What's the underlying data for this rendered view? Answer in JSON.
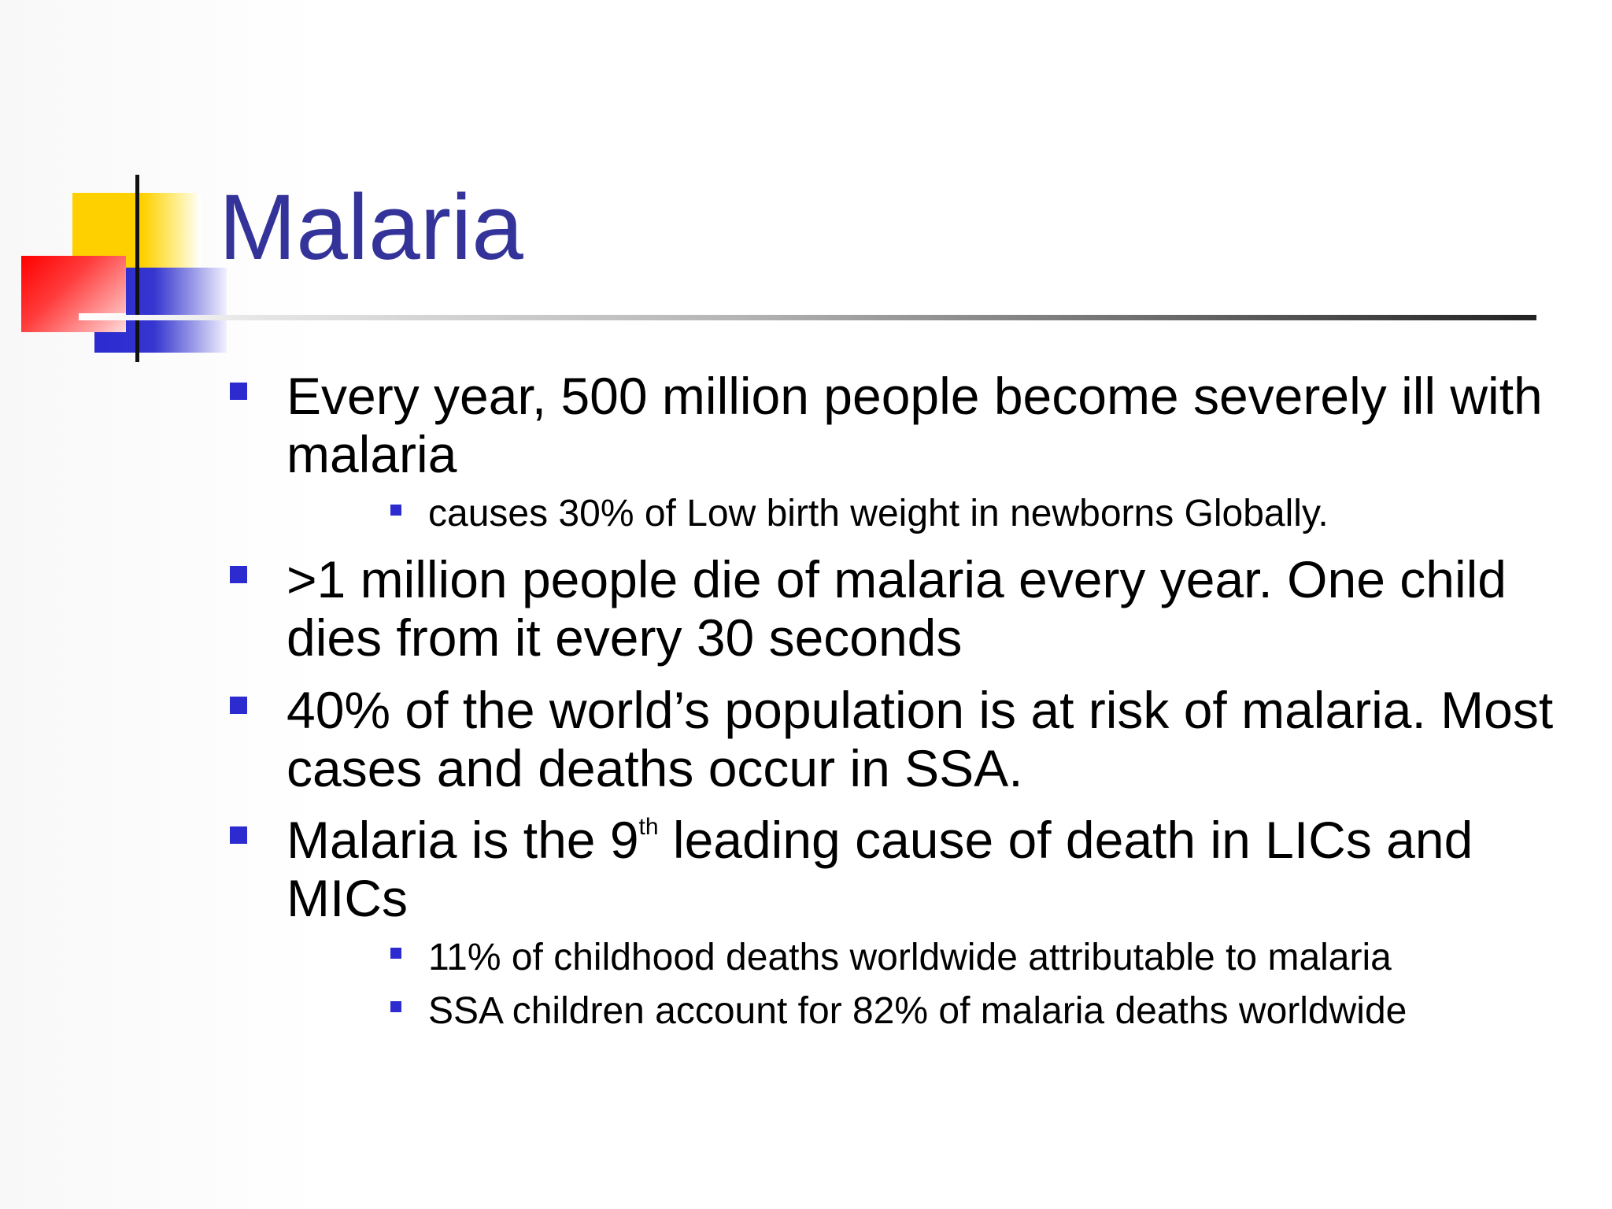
{
  "slide": {
    "title": "Malaria",
    "colors": {
      "title": "#333399",
      "bullet": "#2b2bd0",
      "deco_yellow": "#ffd000",
      "deco_blue": "#2a2ad0",
      "deco_red": "#ff0000"
    },
    "bullets": [
      {
        "level": 1,
        "text": "Every year, 500 million people become severely ill with malaria"
      },
      {
        "level": 2,
        "text": "causes 30% of Low birth weight in newborns Globally."
      },
      {
        "level": 1,
        "text": ">1 million people die of malaria every year. One child dies from it every 30 seconds"
      },
      {
        "level": 1,
        "text": "40% of the world’s population is at risk of malaria. Most cases and deaths occur in SSA."
      },
      {
        "level": 1,
        "text_before": "Malaria is the 9",
        "superscript": "th",
        "text_after": " leading cause of death in LICs and MICs"
      },
      {
        "level": 2,
        "text": "11% of childhood deaths worldwide attributable to malaria"
      },
      {
        "level": 2,
        "text": "SSA children account for 82% of malaria deaths worldwide"
      }
    ]
  }
}
